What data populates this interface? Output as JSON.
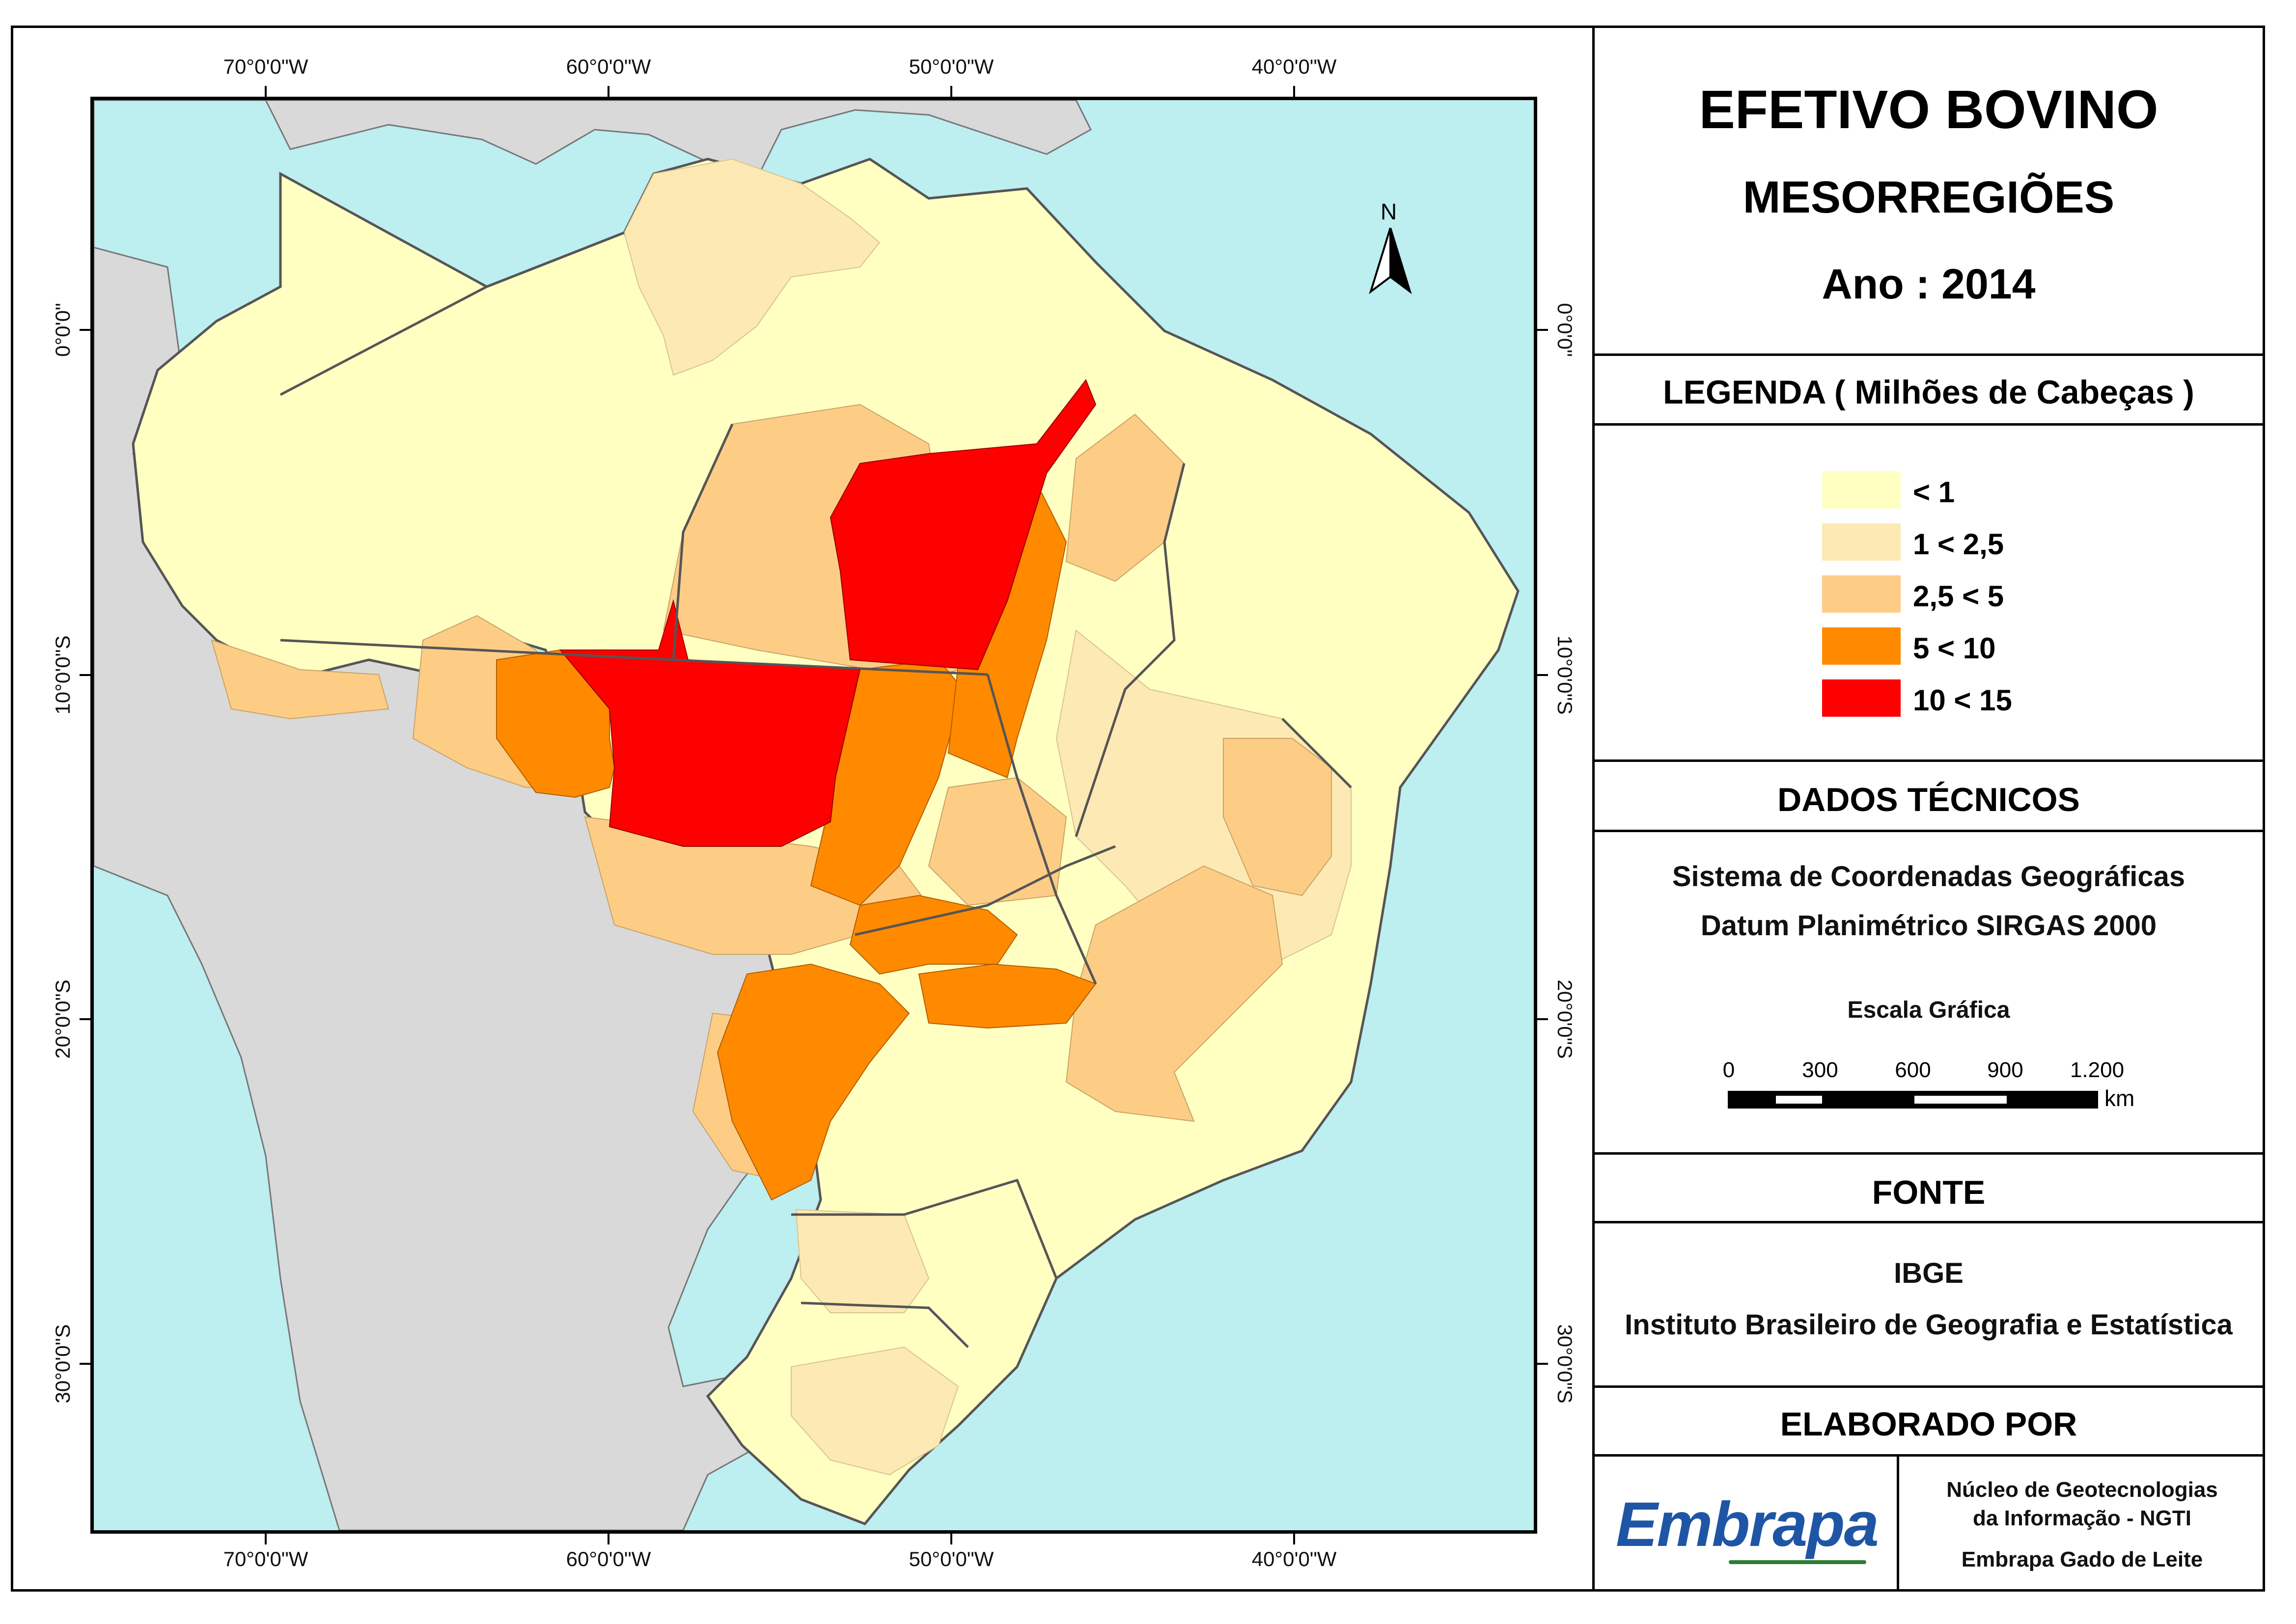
{
  "title": "EFETIVO BOVINO",
  "subtitle": "MESORREGIÕES",
  "year_label": "Ano : 2014",
  "legend": {
    "heading": "LEGENDA ( Milhões de Cabeças )",
    "classes": [
      {
        "label": "< 1",
        "color": "#ffffc2"
      },
      {
        "label": "1 < 2,5",
        "color": "#fde9b3"
      },
      {
        "label": "2,5 < 5",
        "color": "#fdcd86"
      },
      {
        "label": "5 < 10",
        "color": "#ff8a00"
      },
      {
        "label": "10 < 15",
        "color": "#ff0000"
      }
    ]
  },
  "technical": {
    "heading": "DADOS TÉCNICOS",
    "line1": "Sistema de Coordenadas Geográficas",
    "line2": "Datum Planimétrico SIRGAS 2000",
    "scale_title": "Escala Gráfica",
    "scale_labels": [
      "0",
      "300",
      "600",
      "900",
      "1.200"
    ],
    "scale_unit": "km"
  },
  "source": {
    "heading": "FONTE",
    "line1": "IBGE",
    "line2": "Instituto Brasileiro de Geografia e Estatística"
  },
  "author": {
    "heading": "ELABORADO POR",
    "logo_text": "Embrapa",
    "line1": "Núcleo de Geotecnologias",
    "line2": "da Informação - NGTI",
    "line3": "Embrapa Gado de Leite"
  },
  "north_label": "N",
  "coords": {
    "lon": [
      "70°0'0\"W",
      "60°0'0\"W",
      "50°0'0\"W",
      "40°0'0\"W"
    ],
    "lat": [
      "0°0'0\"",
      "10°0'0\"S",
      "20°0'0\"S",
      "30°0'0\"S"
    ]
  },
  "colors": {
    "ocean": "#bdeef0",
    "neighbor_land": "#d9d9d9",
    "border": "#555555"
  }
}
